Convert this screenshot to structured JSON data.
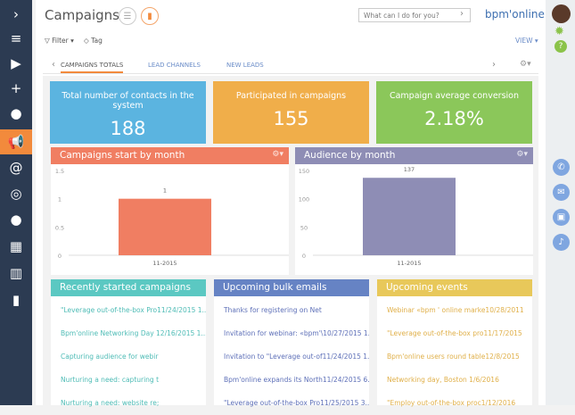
{
  "sidebar": {
    "items": [
      {
        "icon": "chevron-right-icon",
        "glyph": "›"
      },
      {
        "icon": "menu-icon",
        "glyph": "≡"
      },
      {
        "icon": "play-icon",
        "glyph": "▶"
      },
      {
        "icon": "plus-icon",
        "glyph": "+"
      },
      {
        "icon": "user-icon",
        "glyph": "●"
      },
      {
        "icon": "megaphone-icon",
        "glyph": "📢",
        "active": true
      },
      {
        "icon": "at-icon",
        "glyph": "@"
      },
      {
        "icon": "target-icon",
        "glyph": "◎"
      },
      {
        "icon": "lightbulb-icon",
        "glyph": "●"
      },
      {
        "icon": "buildings-icon",
        "glyph": "▦"
      },
      {
        "icon": "building-icon",
        "glyph": "▥"
      },
      {
        "icon": "bar-chart-icon",
        "glyph": "▮"
      }
    ]
  },
  "header": {
    "title": "Campaigns",
    "search_placeholder": "What can I do for you?",
    "logo": "bpm'online"
  },
  "toolbar": {
    "filter": "Filter",
    "tag": "Tag",
    "view": "VIEW"
  },
  "tabs": [
    {
      "label": "CAMPAIGNS TOTALS",
      "active": true
    },
    {
      "label": "LEAD CHANNELS"
    },
    {
      "label": "NEW LEADS"
    }
  ],
  "kpis": [
    {
      "label": "Total number of contacts in the system",
      "value": "188",
      "color": "#5bb4e0"
    },
    {
      "label": "Participated in campaigns",
      "value": "155",
      "color": "#f0ae4a"
    },
    {
      "label": "Campaign average conversion",
      "value": "2.18%",
      "color": "#8bc75a"
    }
  ],
  "chart_data": [
    {
      "type": "bar",
      "title": "Campaigns start by month",
      "categories": [
        "11-2015"
      ],
      "values": [
        1
      ],
      "ylim": [
        0,
        1.5
      ],
      "yticks": [
        "0",
        "0.5",
        "1",
        "1.5"
      ],
      "color": "#f07e62"
    },
    {
      "type": "bar",
      "title": "Audience by month",
      "categories": [
        "11-2015"
      ],
      "values": [
        137
      ],
      "ylim": [
        0,
        150
      ],
      "yticks": [
        "0",
        "50",
        "100",
        "150"
      ],
      "color": "#8e8db5"
    }
  ],
  "lists": [
    {
      "title": "Recently started campaigns",
      "color": "#5bc8c2",
      "text_color": "#4fbcb6",
      "items": [
        "\"Leverage out-of-the-box Pro11/24/2015 1...",
        "Bpm'online Networking Day  12/16/2015 1...",
        "Capturing audience for webir",
        "Nurturing a need: capturing t",
        "Nurturing a need: website re;"
      ]
    },
    {
      "title": "Upcoming bulk emails",
      "color": "#6683c4",
      "text_color": "#5e70b8",
      "items": [
        "Thanks for registering on Net",
        "Invitation for webinar: «bpm'\\10/27/2015 1...",
        "Invitation to \"Leverage out-of11/24/2015 1...",
        "Bpm'online expands its North11/24/2015 6...",
        "\"Leverage out-of-the-box Pro11/25/2015 3..."
      ]
    },
    {
      "title": "Upcoming events",
      "color": "#e8c85a",
      "text_color": "#e0b04a",
      "items": [
        "Webinar «bpm ' online marke10/28/2011",
        "\"Leverage out-of-the-box pro11/17/2015",
        "Bpm'online users round table12/8/2015",
        "Networking day, Boston         1/6/2016",
        "\"Employ out-of-the-box proc1/12/2016"
      ]
    }
  ],
  "right_panel": [
    {
      "icon": "phone-icon",
      "glyph": "✆"
    },
    {
      "icon": "mail-icon",
      "glyph": "✉"
    },
    {
      "icon": "chat-icon",
      "glyph": "▣"
    },
    {
      "icon": "bell-icon",
      "glyph": "♪"
    }
  ]
}
